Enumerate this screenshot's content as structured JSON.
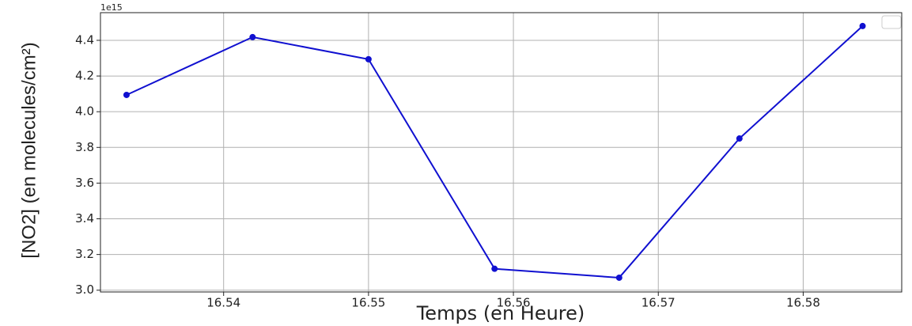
{
  "chart_data": {
    "type": "line",
    "xlabel": "Temps (en Heure)",
    "ylabel": "[NO2] (en molecules/cm²)",
    "y_offset_label": "1e15",
    "x": [
      16.5333,
      16.542,
      16.55,
      16.5587,
      16.5673,
      16.5756,
      16.5841
    ],
    "series": [
      {
        "color": "#1010d0",
        "values": [
          4.094,
          4.418,
          4.294,
          3.12,
          3.07,
          3.85,
          4.48
        ]
      }
    ],
    "xlim": [
      16.5315,
      16.5868
    ],
    "xticks": [
      16.54,
      16.55,
      16.56,
      16.57,
      16.58
    ],
    "ylim": [
      2.99,
      4.555
    ],
    "yticks": [
      {
        "value": 3,
        "label": "3.0"
      },
      3.2,
      3.4,
      3.6,
      3.8,
      {
        "value": 4,
        "label": "4.0"
      },
      4.2,
      4.4
    ],
    "grid": true
  }
}
